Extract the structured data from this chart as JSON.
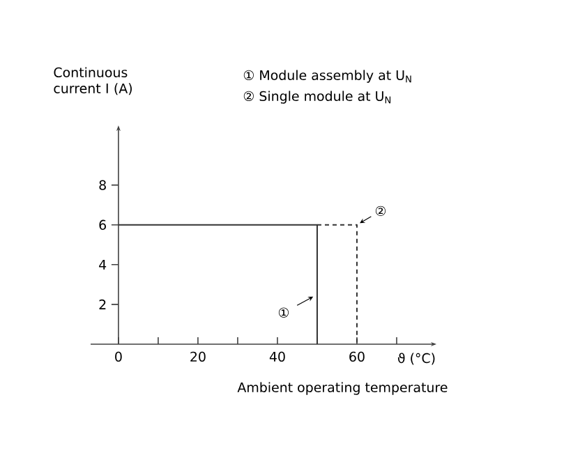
{
  "chart_data": {
    "type": "line",
    "xlabel": "ϑ (°C)",
    "ylabel": "Continuous current I (A)",
    "xlim": [
      -7,
      80
    ],
    "ylim": [
      0,
      11
    ],
    "xticks": [
      0,
      {
        "value": 10,
        "label": null
      },
      20,
      {
        "value": 30,
        "label": null
      },
      40,
      {
        "value": 50,
        "label": null
      },
      60,
      {
        "value": 70,
        "label": null
      }
    ],
    "yticks": [
      2,
      4,
      6,
      8
    ],
    "series": [
      {
        "color": "#333333",
        "line_style": "solid",
        "x": [
          0,
          50,
          50
        ],
        "values": [
          6,
          6,
          0
        ]
      },
      {
        "color": "#333333",
        "line_style": "dashed",
        "x": [
          50,
          60,
          60
        ],
        "values": [
          6,
          6,
          0
        ]
      }
    ],
    "annotations": [
      "① Module assembly at U$_{N}$",
      "② Single module at U$_{N}$",
      "Ambient operating temperature",
      {
        "text": "①",
        "x": 50,
        "y": 2.5
      },
      {
        "text": "②",
        "x": 60,
        "y": 6
      }
    ],
    "marker": "none",
    "grid": false
  }
}
